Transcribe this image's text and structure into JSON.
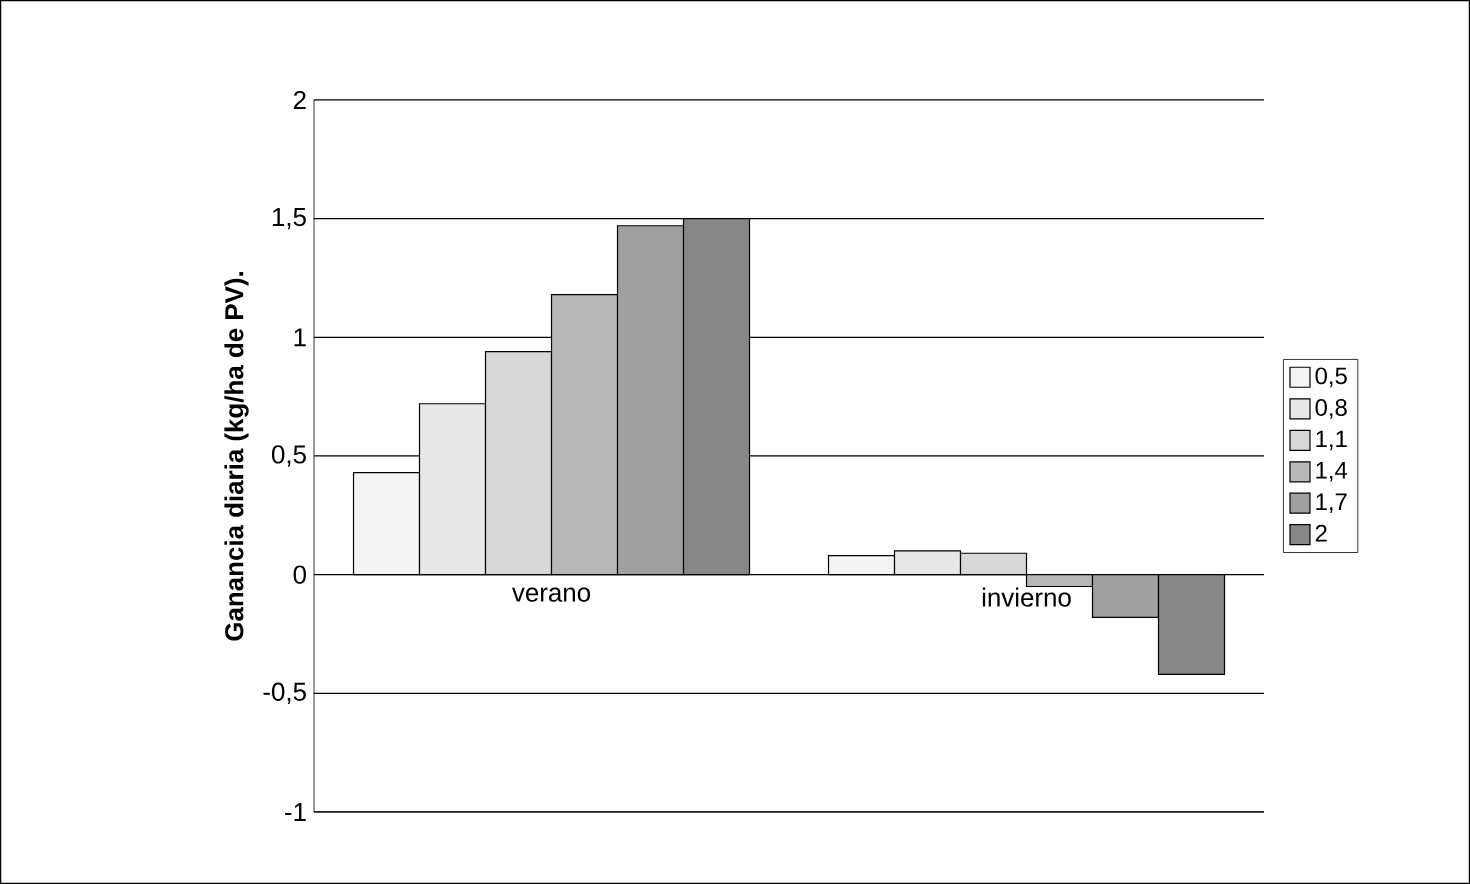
{
  "chart_data": {
    "type": "bar",
    "ylabel": "Ganancia diaria (kg/ha de PV).",
    "categories": [
      "verano",
      "invierno"
    ],
    "series": [
      {
        "name": "0,5",
        "color": "#f4f4f4",
        "values": [
          0.43,
          0.08
        ]
      },
      {
        "name": "0,8",
        "color": "#e8e8e8",
        "values": [
          0.72,
          0.1
        ]
      },
      {
        "name": "1,1",
        "color": "#d8d8d8",
        "values": [
          0.94,
          0.09
        ]
      },
      {
        "name": "1,4",
        "color": "#b8b8b8",
        "values": [
          1.18,
          -0.05
        ]
      },
      {
        "name": "1,7",
        "color": "#a0a0a0",
        "values": [
          1.47,
          -0.18
        ]
      },
      {
        "name": "2",
        "color": "#888888",
        "values": [
          1.5,
          -0.42
        ]
      }
    ],
    "ylim": [
      -1,
      2
    ],
    "yticks": [
      -1,
      {
        "value": -0.5,
        "label": "-0,5"
      },
      0,
      {
        "value": 0.5,
        "label": "0,5"
      },
      1,
      {
        "value": 1.5,
        "label": "1,5"
      },
      2
    ],
    "grid": "y",
    "legend": "right"
  }
}
